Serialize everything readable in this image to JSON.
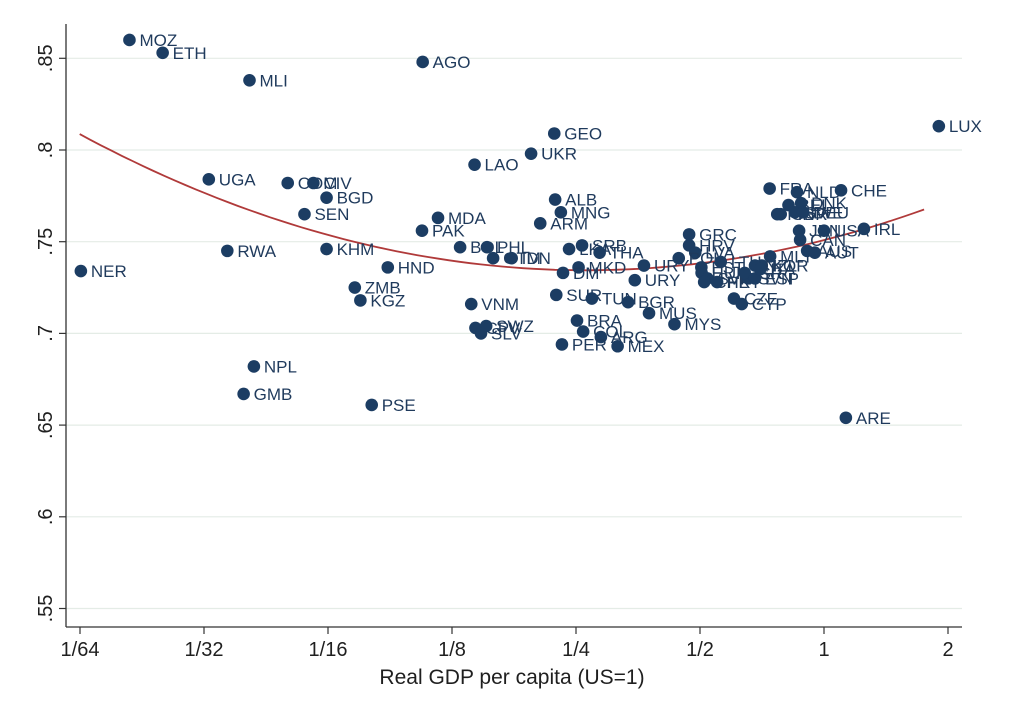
{
  "chart_data": {
    "type": "scatter",
    "title": "",
    "xlabel": "Real GDP per capita (US=1)",
    "ylabel": "",
    "x_scale": "log2",
    "xlim": [
      0.015625,
      2.3
    ],
    "ylim": [
      0.545,
      0.87
    ],
    "grid": true,
    "legend": "none",
    "x_ticks": [
      {
        "value": 0.015625,
        "label": "1/64"
      },
      {
        "value": 0.03125,
        "label": "1/32"
      },
      {
        "value": 0.0625,
        "label": "1/16"
      },
      {
        "value": 0.125,
        "label": "1/8"
      },
      {
        "value": 0.25,
        "label": "1/4"
      },
      {
        "value": 0.5,
        "label": "1/2"
      },
      {
        "value": 1,
        "label": "1"
      },
      {
        "value": 2,
        "label": "2"
      }
    ],
    "y_ticks": [
      {
        "value": 0.55,
        "label": ".55"
      },
      {
        "value": 0.6,
        "label": ".6"
      },
      {
        "value": 0.65,
        "label": ".65"
      },
      {
        "value": 0.7,
        "label": ".7"
      },
      {
        "value": 0.75,
        "label": ".75"
      },
      {
        "value": 0.8,
        "label": ".8"
      },
      {
        "value": 0.85,
        "label": ".85"
      }
    ],
    "colors": {
      "points": "#1c3d63",
      "fit": "#b03a3a",
      "grid": "#e4ece6",
      "axis": "#333333"
    },
    "fit_line": {
      "type": "quadratic",
      "x": [
        0.0156,
        0.03,
        0.06,
        0.12,
        0.25,
        0.5,
        1.0,
        1.75
      ],
      "y": [
        0.807,
        0.779,
        0.757,
        0.741,
        0.734,
        0.736,
        0.749,
        0.77
      ]
    },
    "points": [
      {
        "label": "MOZ",
        "x": 0.0206,
        "y": 0.86
      },
      {
        "label": "ETH",
        "x": 0.0248,
        "y": 0.853
      },
      {
        "label": "MLI",
        "x": 0.0403,
        "y": 0.838
      },
      {
        "label": "AGO",
        "x": 0.1061,
        "y": 0.848
      },
      {
        "label": "NER",
        "x": 0.0157,
        "y": 0.734
      },
      {
        "label": "UGA",
        "x": 0.0321,
        "y": 0.784
      },
      {
        "label": "RWA",
        "x": 0.0356,
        "y": 0.745
      },
      {
        "label": "COM",
        "x": 0.0499,
        "y": 0.782
      },
      {
        "label": "CIV",
        "x": 0.0576,
        "y": 0.782
      },
      {
        "label": "BGD",
        "x": 0.062,
        "y": 0.774
      },
      {
        "label": "SEN",
        "x": 0.0548,
        "y": 0.765
      },
      {
        "label": "KHM",
        "x": 0.062,
        "y": 0.746
      },
      {
        "label": "ZMB",
        "x": 0.0726,
        "y": 0.725
      },
      {
        "label": "KGZ",
        "x": 0.0749,
        "y": 0.718
      },
      {
        "label": "HND",
        "x": 0.0873,
        "y": 0.736
      },
      {
        "label": "NPL",
        "x": 0.0413,
        "y": 0.682
      },
      {
        "label": "GMB",
        "x": 0.039,
        "y": 0.667
      },
      {
        "label": "PSE",
        "x": 0.0798,
        "y": 0.661
      },
      {
        "label": "PAK",
        "x": 0.1057,
        "y": 0.756
      },
      {
        "label": "MDA",
        "x": 0.1156,
        "y": 0.763
      },
      {
        "label": "LAO",
        "x": 0.1418,
        "y": 0.792
      },
      {
        "label": "BOL",
        "x": 0.1308,
        "y": 0.747
      },
      {
        "label": "PHL",
        "x": 0.152,
        "y": 0.747
      },
      {
        "label": "GTM",
        "x": 0.1573,
        "y": 0.741
      },
      {
        "label": "IDN",
        "x": 0.1745,
        "y": 0.741
      },
      {
        "label": "VNM",
        "x": 0.1392,
        "y": 0.716
      },
      {
        "label": "CPV",
        "x": 0.1425,
        "y": 0.703
      },
      {
        "label": "SWZ",
        "x": 0.1513,
        "y": 0.704
      },
      {
        "label": "SLV",
        "x": 0.147,
        "y": 0.7
      },
      {
        "label": "UKR",
        "x": 0.1945,
        "y": 0.798
      },
      {
        "label": "ARM",
        "x": 0.2047,
        "y": 0.76
      },
      {
        "label": "GEO",
        "x": 0.2214,
        "y": 0.809
      },
      {
        "label": "ALB",
        "x": 0.2225,
        "y": 0.773
      },
      {
        "label": "MNG",
        "x": 0.2297,
        "y": 0.766
      },
      {
        "label": "LKA",
        "x": 0.2405,
        "y": 0.746
      },
      {
        "label": "SRB",
        "x": 0.2586,
        "y": 0.748
      },
      {
        "label": "MKD",
        "x": 0.2536,
        "y": 0.736
      },
      {
        "label": "DM",
        "x": 0.2325,
        "y": 0.733
      },
      {
        "label": "THA",
        "x": 0.2853,
        "y": 0.744
      },
      {
        "label": "SUR",
        "x": 0.2239,
        "y": 0.721
      },
      {
        "label": "TUN",
        "x": 0.2732,
        "y": 0.719
      },
      {
        "label": "BRA",
        "x": 0.2514,
        "y": 0.707
      },
      {
        "label": "COL",
        "x": 0.2602,
        "y": 0.701
      },
      {
        "label": "ARG",
        "x": 0.2873,
        "y": 0.698
      },
      {
        "label": "MEX",
        "x": 0.3155,
        "y": 0.693
      },
      {
        "label": "PER",
        "x": 0.2311,
        "y": 0.694
      },
      {
        "label": "BGR",
        "x": 0.3345,
        "y": 0.717
      },
      {
        "label": "URY",
        "x": 0.3655,
        "y": 0.737
      },
      {
        "label": "URY",
        "x": 0.3473,
        "y": 0.729
      },
      {
        "label": "MUS",
        "x": 0.376,
        "y": 0.711
      },
      {
        "label": "MYS",
        "x": 0.4335,
        "y": 0.705
      },
      {
        "label": "GRC",
        "x": 0.4705,
        "y": 0.754
      },
      {
        "label": "HRV",
        "x": 0.4705,
        "y": 0.748
      },
      {
        "label": "LVA",
        "x": 0.4869,
        "y": 0.744
      },
      {
        "label": "POL",
        "x": 0.444,
        "y": 0.741
      },
      {
        "label": "EST",
        "x": 0.5038,
        "y": 0.736
      },
      {
        "label": "LTU",
        "x": 0.5614,
        "y": 0.739
      },
      {
        "label": "HUN",
        "x": 0.5045,
        "y": 0.733
      },
      {
        "label": "SVK",
        "x": 0.5213,
        "y": 0.73
      },
      {
        "label": "CHL",
        "x": 0.5118,
        "y": 0.728
      },
      {
        "label": "PRT",
        "x": 0.5501,
        "y": 0.728
      },
      {
        "label": "CZE",
        "x": 0.6046,
        "y": 0.719
      },
      {
        "label": "CYP",
        "x": 0.6316,
        "y": 0.716
      },
      {
        "label": "SVN",
        "x": 0.655,
        "y": 0.73
      },
      {
        "label": "ISR",
        "x": 0.642,
        "y": 0.733
      },
      {
        "label": "ESP",
        "x": 0.68,
        "y": 0.73
      },
      {
        "label": "KOR",
        "x": 0.706,
        "y": 0.737
      },
      {
        "label": "MLT",
        "x": 0.74,
        "y": 0.742
      },
      {
        "label": "NZL",
        "x": 0.68,
        "y": 0.737
      },
      {
        "label": "ITA",
        "x": 0.7,
        "y": 0.735
      },
      {
        "label": "GBR",
        "x": 0.785,
        "y": 0.765
      },
      {
        "label": "FIN",
        "x": 0.77,
        "y": 0.765
      },
      {
        "label": "FRA",
        "x": 0.738,
        "y": 0.779
      },
      {
        "label": "BEL",
        "x": 0.82,
        "y": 0.77
      },
      {
        "label": "NLD",
        "x": 0.86,
        "y": 0.777
      },
      {
        "label": "DNK",
        "x": 0.88,
        "y": 0.771
      },
      {
        "label": "SWE",
        "x": 0.85,
        "y": 0.766
      },
      {
        "label": "DEU",
        "x": 0.89,
        "y": 0.766
      },
      {
        "label": "JPN",
        "x": 0.87,
        "y": 0.756
      },
      {
        "label": "CAN",
        "x": 0.875,
        "y": 0.751
      },
      {
        "label": "AUS",
        "x": 0.91,
        "y": 0.745
      },
      {
        "label": "AUT",
        "x": 0.95,
        "y": 0.744
      },
      {
        "label": "USA",
        "x": 1.0,
        "y": 0.756
      },
      {
        "label": "CHE",
        "x": 1.1,
        "y": 0.778
      },
      {
        "label": "IRL",
        "x": 1.25,
        "y": 0.757
      },
      {
        "label": "LUX",
        "x": 1.9,
        "y": 0.813
      },
      {
        "label": "ARE",
        "x": 1.13,
        "y": 0.654
      }
    ]
  }
}
